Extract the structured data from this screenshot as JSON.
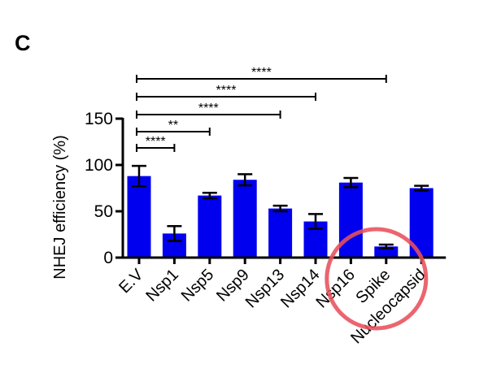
{
  "panel_label": "C",
  "colors": {
    "bar": "#0000ee",
    "axis": "#000000",
    "highlight_circle": "#e8505b"
  },
  "chart_data": {
    "type": "bar",
    "title": "",
    "xlabel": "",
    "ylabel": "NHEJ efficiency (%)",
    "ylim": [
      0,
      150
    ],
    "yticks": [
      0,
      50,
      100,
      150
    ],
    "grid": false,
    "legend": null,
    "categories": [
      "E.V",
      "Nsp1",
      "Nsp5",
      "Nsp9",
      "Nsp13",
      "Nsp14",
      "Nsp16",
      "Spike",
      "Nucleocapsid"
    ],
    "values": [
      88,
      26,
      67,
      84,
      53,
      39,
      81,
      12,
      75
    ],
    "error": [
      11,
      8,
      3,
      6,
      3,
      8,
      5,
      2,
      2.5
    ],
    "significance": [
      {
        "from": "E.V",
        "to": "Nsp1",
        "label": "****"
      },
      {
        "from": "E.V",
        "to": "Nsp5",
        "label": "**"
      },
      {
        "from": "E.V",
        "to": "Nsp13",
        "label": "****"
      },
      {
        "from": "E.V",
        "to": "Nsp14",
        "label": "****"
      },
      {
        "from": "E.V",
        "to": "Spike",
        "label": "****"
      }
    ],
    "annotations": [
      {
        "type": "circle",
        "target": "Spike",
        "color": "#e8505b"
      }
    ]
  }
}
